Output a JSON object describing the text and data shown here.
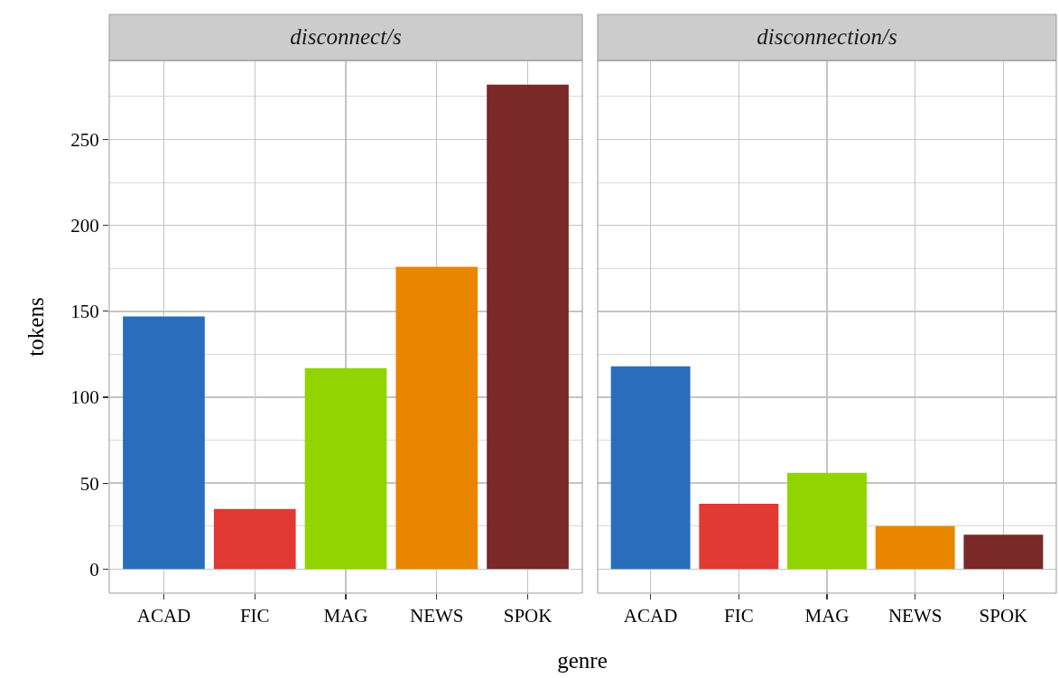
{
  "chart_data": [
    {
      "type": "bar",
      "title": "disconnect/s",
      "xlabel": "genre",
      "ylabel": "tokens",
      "categories": [
        "ACAD",
        "FIC",
        "MAG",
        "NEWS",
        "SPOK"
      ],
      "values": [
        147,
        35,
        117,
        176,
        282
      ],
      "colors": [
        "#2a6ebb",
        "#e03a33",
        "#92d400",
        "#ea8500",
        "#7a2828"
      ],
      "ylim": [
        -14,
        296
      ],
      "yticks": [
        0,
        50,
        100,
        150,
        200,
        250,
        {
          "value": 25,
          "label": null
        },
        {
          "value": 75,
          "label": null
        },
        {
          "value": 125,
          "label": null
        },
        {
          "value": 175,
          "label": null
        },
        {
          "value": 225,
          "label": null
        },
        {
          "value": 275,
          "label": null
        }
      ],
      "grid": true
    },
    {
      "type": "bar",
      "title": "disconnection/s",
      "categories": [
        "ACAD",
        "FIC",
        "MAG",
        "NEWS",
        "SPOK"
      ],
      "values": [
        118,
        38,
        56,
        25,
        20
      ],
      "colors": [
        "#2a6ebb",
        "#e03a33",
        "#92d400",
        "#ea8500",
        "#7a2828"
      ],
      "ylim": [
        -14,
        296
      ],
      "yticks": [
        0,
        50,
        100,
        150,
        200,
        250,
        {
          "value": 25,
          "label": null
        },
        {
          "value": 75,
          "label": null
        },
        {
          "value": 125,
          "label": null
        },
        {
          "value": 175,
          "label": null
        },
        {
          "value": 225,
          "label": null
        },
        {
          "value": 275,
          "label": null
        }
      ],
      "grid": true,
      "tick_labels": "x"
    }
  ]
}
